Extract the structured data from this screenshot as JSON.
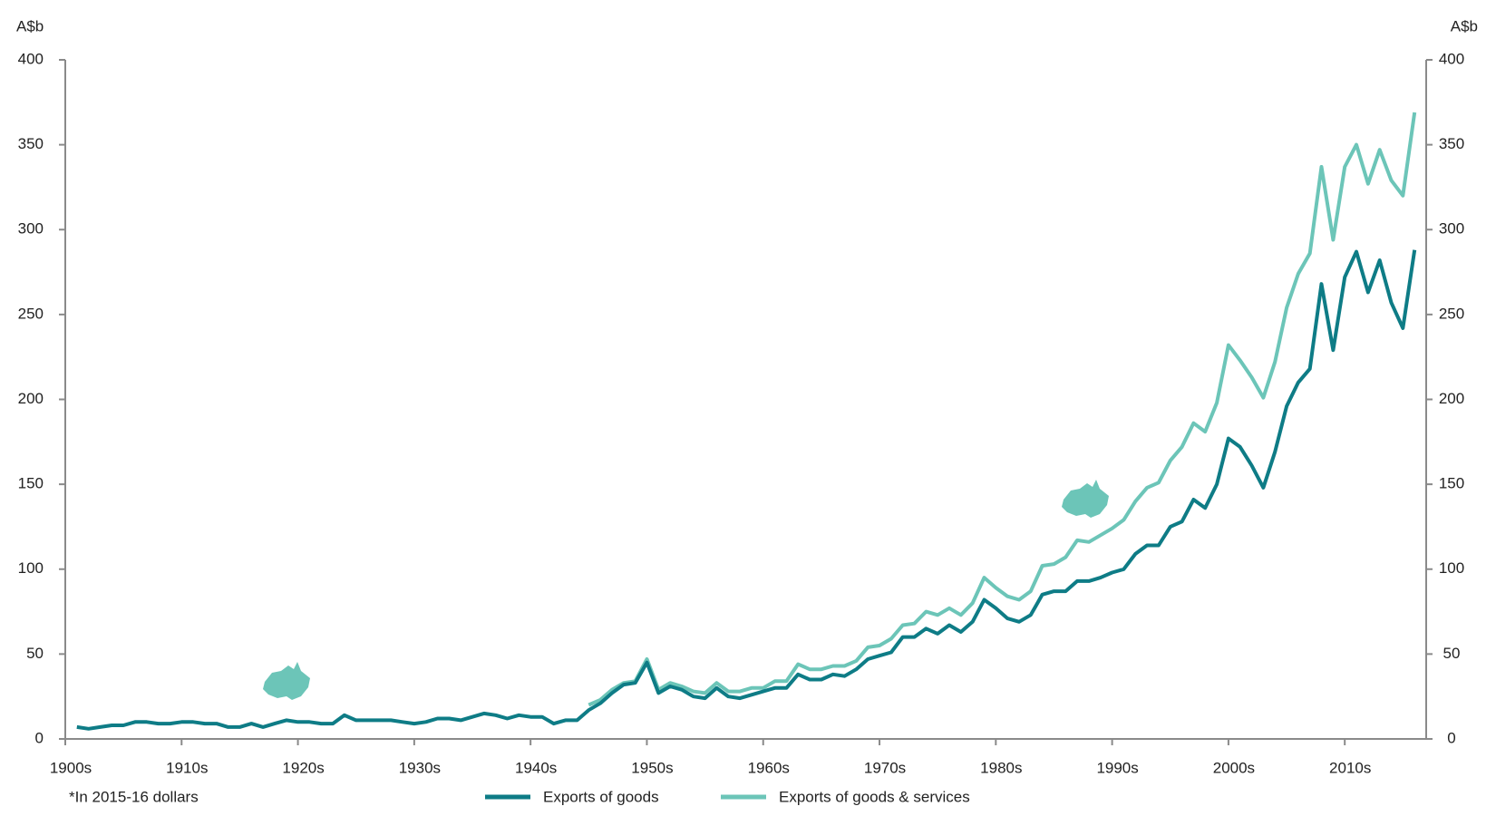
{
  "chart_data": {
    "type": "line",
    "y_label": "A$b",
    "note": "*In 2015-16 dollars",
    "x": [
      1901,
      1902,
      1903,
      1904,
      1905,
      1906,
      1907,
      1908,
      1909,
      1910,
      1911,
      1912,
      1913,
      1914,
      1915,
      1916,
      1917,
      1918,
      1919,
      1920,
      1921,
      1922,
      1923,
      1924,
      1925,
      1926,
      1927,
      1928,
      1929,
      1930,
      1931,
      1932,
      1933,
      1934,
      1935,
      1936,
      1937,
      1938,
      1939,
      1940,
      1941,
      1942,
      1943,
      1944,
      1945,
      1946,
      1947,
      1948,
      1949,
      1950,
      1951,
      1952,
      1953,
      1954,
      1955,
      1956,
      1957,
      1958,
      1959,
      1960,
      1961,
      1962,
      1963,
      1964,
      1965,
      1966,
      1967,
      1968,
      1969,
      1970,
      1971,
      1972,
      1973,
      1974,
      1975,
      1976,
      1977,
      1978,
      1979,
      1980,
      1981,
      1982,
      1983,
      1984,
      1985,
      1986,
      1987,
      1988,
      1989,
      1990,
      1991,
      1992,
      1993,
      1994,
      1995,
      1996,
      1997,
      1998,
      1999,
      2000,
      2001,
      2002,
      2003,
      2004,
      2005,
      2006,
      2007,
      2008,
      2009,
      2010,
      2011,
      2012,
      2013,
      2014,
      2015,
      2016
    ],
    "series": [
      {
        "name": "Exports of goods",
        "color": "#0e7c86",
        "values": [
          7,
          6,
          7,
          8,
          8,
          10,
          10,
          9,
          9,
          10,
          10,
          9,
          9,
          7,
          7,
          9,
          7,
          9,
          11,
          10,
          10,
          9,
          9,
          14,
          11,
          11,
          11,
          11,
          10,
          9,
          10,
          12,
          12,
          11,
          13,
          15,
          14,
          12,
          14,
          13,
          13,
          9,
          11,
          11,
          17,
          21,
          27,
          32,
          33,
          45,
          27,
          31,
          29,
          25,
          24,
          30,
          25,
          24,
          26,
          28,
          30,
          30,
          38,
          35,
          35,
          38,
          37,
          41,
          47,
          49,
          51,
          60,
          60,
          65,
          62,
          67,
          63,
          69,
          82,
          77,
          71,
          69,
          73,
          85,
          87,
          87,
          93,
          93,
          95,
          98,
          100,
          109,
          114,
          114,
          125,
          128,
          141,
          136,
          150,
          177,
          172,
          161,
          148,
          169,
          196,
          210,
          218,
          268,
          229,
          272,
          287,
          263,
          282,
          257,
          242,
          288
        ]
      },
      {
        "name": "Exports of goods & services",
        "color": "#6cc5b8",
        "values": [
          null,
          null,
          null,
          null,
          null,
          null,
          null,
          null,
          null,
          null,
          null,
          null,
          null,
          null,
          null,
          null,
          null,
          null,
          null,
          null,
          null,
          null,
          null,
          null,
          null,
          null,
          null,
          null,
          null,
          null,
          null,
          null,
          null,
          null,
          null,
          null,
          null,
          null,
          null,
          null,
          null,
          null,
          null,
          null,
          20,
          23,
          29,
          33,
          34,
          47,
          29,
          33,
          31,
          28,
          27,
          33,
          28,
          28,
          30,
          30,
          34,
          34,
          44,
          41,
          41,
          43,
          43,
          46,
          54,
          55,
          59,
          67,
          68,
          75,
          73,
          77,
          73,
          80,
          95,
          89,
          84,
          82,
          87,
          102,
          103,
          107,
          117,
          116,
          120,
          124,
          129,
          140,
          148,
          151,
          164,
          172,
          186,
          181,
          198,
          232,
          223,
          213,
          201,
          222,
          254,
          274,
          286,
          337,
          294,
          337,
          350,
          327,
          347,
          329,
          320,
          369
        ]
      }
    ],
    "xlim": [
      1900,
      2017
    ],
    "xticks": [
      {
        "value": 1900,
        "label": "1900s"
      },
      {
        "value": 1910,
        "label": "1910s"
      },
      {
        "value": 1920,
        "label": "1920s"
      },
      {
        "value": 1930,
        "label": "1930s"
      },
      {
        "value": 1940,
        "label": "1940s"
      },
      {
        "value": 1950,
        "label": "1950s"
      },
      {
        "value": 1960,
        "label": "1960s"
      },
      {
        "value": 1970,
        "label": "1970s"
      },
      {
        "value": 1980,
        "label": "1980s"
      },
      {
        "value": 1990,
        "label": "1990s"
      },
      {
        "value": 2000,
        "label": "2000s"
      },
      {
        "value": 2010,
        "label": "2010s"
      }
    ],
    "ylim": [
      0,
      400
    ],
    "yticks": [
      0,
      50,
      100,
      150,
      200,
      250,
      300,
      350,
      400
    ],
    "grid": false
  }
}
